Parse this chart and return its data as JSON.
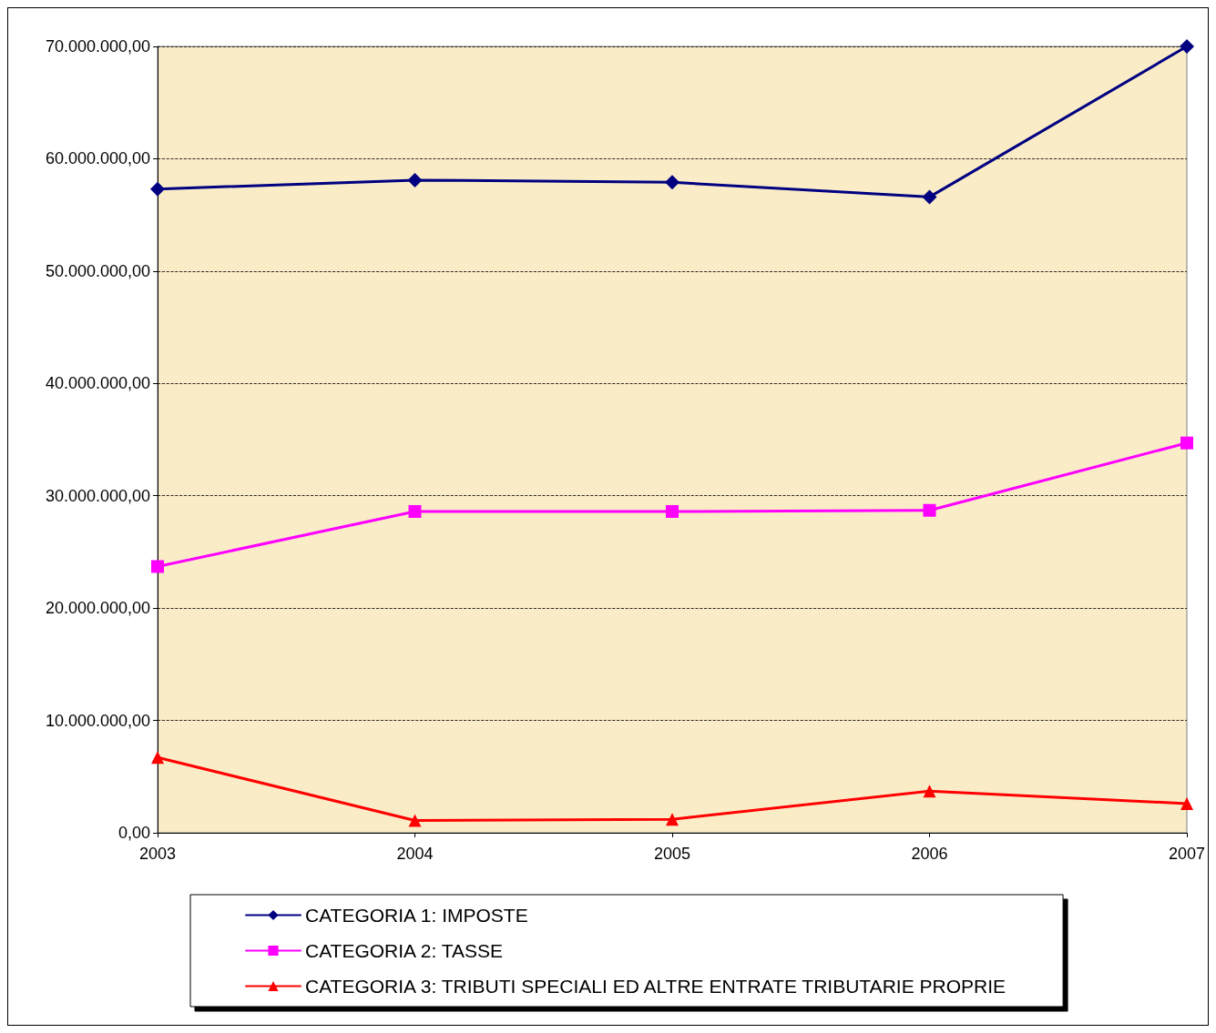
{
  "chart_data": {
    "type": "line",
    "categories": [
      "2003",
      "2004",
      "2005",
      "2006",
      "2007"
    ],
    "series": [
      {
        "name": "CATEGORIA 1: IMPOSTE",
        "color": "#000080",
        "marker": "diamond",
        "values": [
          57300000,
          58100000,
          57900000,
          56600000,
          70000000
        ]
      },
      {
        "name": "CATEGORIA 2: TASSE",
        "color": "#ff00ff",
        "marker": "square",
        "values": [
          23700000,
          28600000,
          28600000,
          28700000,
          34700000
        ]
      },
      {
        "name": "CATEGORIA 3: TRIBUTI SPECIALI ED ALTRE ENTRATE TRIBUTARIE PROPRIE",
        "color": "#ff0000",
        "marker": "triangle",
        "values": [
          6700000,
          1100000,
          1200000,
          3700000,
          2600000
        ]
      }
    ],
    "ylim": [
      0,
      70000000
    ],
    "yticks": [
      {
        "value": 0,
        "label": "0,00"
      },
      {
        "value": 10000000,
        "label": "10.000.000,00"
      },
      {
        "value": 20000000,
        "label": "20.000.000,00"
      },
      {
        "value": 30000000,
        "label": "30.000.000,00"
      },
      {
        "value": 40000000,
        "label": "40.000.000,00"
      },
      {
        "value": 50000000,
        "label": "50.000.000,00"
      },
      {
        "value": 60000000,
        "label": "60.000.000,00"
      },
      {
        "value": 70000000,
        "label": "70.000.000,00"
      }
    ],
    "grid": "y",
    "legend": "bottom",
    "line_style": "solid"
  }
}
